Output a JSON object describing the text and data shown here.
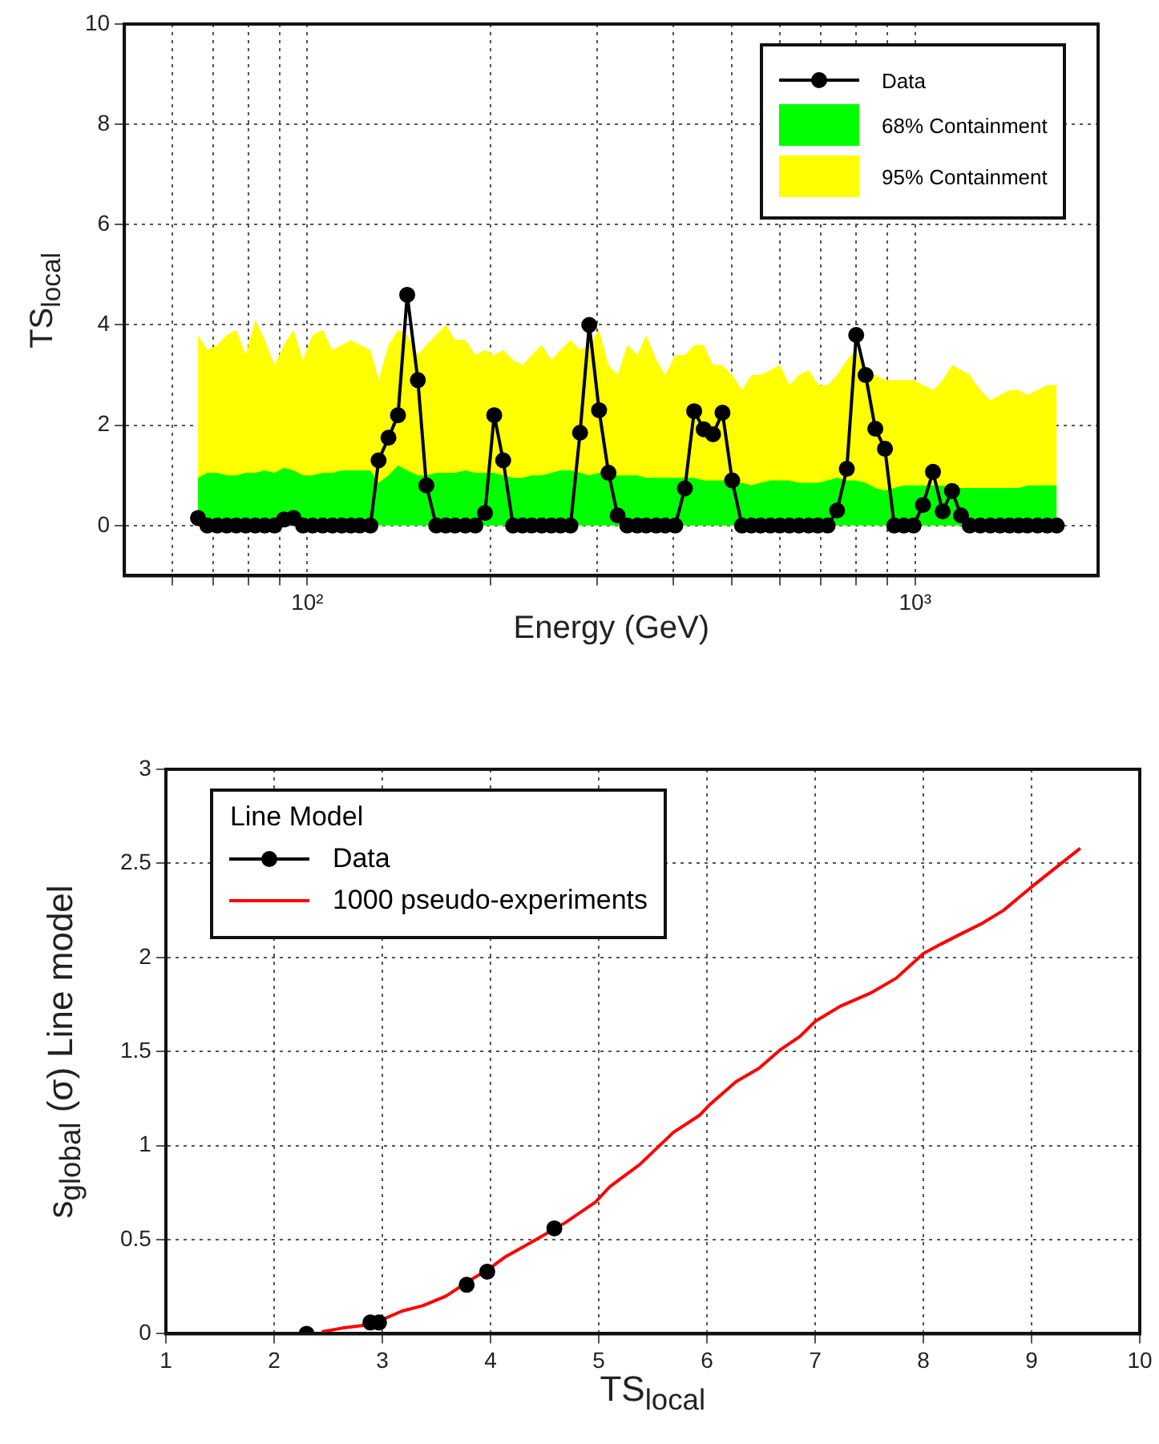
{
  "chart_data": [
    {
      "type": "line",
      "xlabel": "Energy (GeV)",
      "ylabel": "TS$_{local}$",
      "log": "x",
      "grid": true,
      "legend": "top right",
      "xlim": [
        50,
        2000
      ],
      "xticks": [
        {
          "value": 60,
          "label": null
        },
        {
          "value": 70,
          "label": null
        },
        {
          "value": 80,
          "label": null
        },
        {
          "value": 90,
          "label": null
        },
        {
          "value": 100,
          "label": "10²"
        },
        {
          "value": 200,
          "label": null
        },
        {
          "value": 300,
          "label": null
        },
        {
          "value": 400,
          "label": null
        },
        {
          "value": 500,
          "label": null
        },
        {
          "value": 600,
          "label": null
        },
        {
          "value": 700,
          "label": null
        },
        {
          "value": 800,
          "label": null
        },
        {
          "value": 900,
          "label": null
        },
        {
          "value": 1000,
          "label": "10³"
        }
      ],
      "ylim": [
        -1,
        10
      ],
      "yticks": [
        0,
        2,
        4,
        6,
        8,
        10
      ],
      "x": [
        66.1,
        68.5,
        71.1,
        73.7,
        76.4,
        79.2,
        82.1,
        85.1,
        88.3,
        91.5,
        94.9,
        98.4,
        102,
        106,
        110,
        114,
        118,
        122,
        127,
        131,
        136,
        141,
        146,
        152,
        157,
        163,
        169,
        175,
        182,
        189,
        196,
        203,
        210,
        218,
        226,
        234,
        243,
        252,
        261,
        271,
        281,
        291,
        302,
        313,
        324,
        336,
        349,
        361,
        375,
        388,
        403,
        418,
        433,
        449,
        465,
        482,
        500,
        519,
        538,
        557,
        578,
        599,
        621,
        644,
        668,
        692,
        718,
        744,
        772,
        800,
        829,
        860,
        892,
        924,
        958,
        994,
        1030,
        1070,
        1110,
        1150,
        1190,
        1230,
        1280,
        1330,
        1380,
        1430,
        1480,
        1530,
        1590,
        1650,
        1710
      ],
      "series": [
        {
          "name": "Data",
          "type": "line",
          "color": "#000000",
          "marker": "circle",
          "line_style": "solid",
          "values": [
            0.15,
            0,
            0,
            0,
            0,
            0,
            0,
            0,
            0,
            0.12,
            0.15,
            0,
            0,
            0,
            0,
            0,
            0,
            0,
            0,
            1.3,
            1.75,
            2.2,
            4.6,
            2.9,
            0.8,
            0,
            0,
            0,
            0,
            0,
            0.25,
            2.2,
            1.3,
            0,
            0,
            0,
            0,
            0,
            0,
            0,
            1.85,
            4.0,
            2.3,
            1.05,
            0.2,
            0,
            0,
            0,
            0,
            0,
            0,
            0.74,
            2.28,
            1.92,
            1.82,
            2.25,
            0.9,
            0,
            0,
            0,
            0,
            0,
            0,
            0,
            0,
            0,
            0,
            0.3,
            1.13,
            3.8,
            3.0,
            1.93,
            1.53,
            0,
            0,
            0,
            0.41,
            1.07,
            0.28,
            0.69,
            0.2,
            0,
            0,
            0,
            0,
            0,
            0,
            0,
            0,
            0,
            0
          ]
        },
        {
          "name": "68% Containment",
          "type": "area",
          "color": "#00ff00",
          "values": [
            0.95,
            1.05,
            1.05,
            1.0,
            1.0,
            1.05,
            1.05,
            1.1,
            1.05,
            1.15,
            1.1,
            1.0,
            1.0,
            1.05,
            1.05,
            1.1,
            1.1,
            1.1,
            1.1,
            0.85,
            1.0,
            1.2,
            1.1,
            1.0,
            1.0,
            1.05,
            1.05,
            1.05,
            1.1,
            1.05,
            1.05,
            1.05,
            1.0,
            0.95,
            0.95,
            1.0,
            1.0,
            1.05,
            1.1,
            1.1,
            1.05,
            1.0,
            1.05,
            1.0,
            1.0,
            1.0,
            1.0,
            0.95,
            0.95,
            0.95,
            0.95,
            0.95,
            0.95,
            0.9,
            0.9,
            0.9,
            0.85,
            0.85,
            0.8,
            0.85,
            0.9,
            0.9,
            0.9,
            0.85,
            0.85,
            0.85,
            0.9,
            0.95,
            0.9,
            0.9,
            0.85,
            0.75,
            0.7,
            0.75,
            0.8,
            0.8,
            0.8,
            0.8,
            0.8,
            0.75,
            0.75,
            0.75,
            0.75,
            0.75,
            0.75,
            0.75,
            0.75,
            0.8,
            0.8,
            0.8,
            0.8
          ]
        },
        {
          "name": "95% Containment",
          "type": "area",
          "color": "#ffff00",
          "values": [
            3.8,
            3.5,
            3.6,
            3.8,
            3.9,
            3.4,
            4.1,
            3.7,
            3.2,
            3.6,
            3.9,
            3.3,
            3.8,
            3.9,
            3.5,
            3.6,
            3.7,
            3.6,
            3.5,
            2.9,
            3.6,
            3.9,
            3.8,
            3.4,
            3.6,
            3.8,
            4.0,
            3.7,
            3.7,
            3.4,
            3.5,
            3.4,
            3.5,
            3.3,
            3.2,
            3.4,
            3.6,
            3.3,
            3.5,
            3.7,
            3.5,
            3.6,
            3.9,
            3.2,
            3.0,
            3.6,
            3.4,
            3.8,
            3.3,
            3.0,
            3.4,
            3.4,
            3.6,
            3.6,
            3.2,
            3.2,
            3.0,
            2.7,
            3.0,
            3.0,
            3.1,
            3.2,
            2.8,
            3.0,
            3.1,
            2.8,
            2.8,
            3.0,
            3.3,
            3.5,
            3.0,
            3.0,
            2.9,
            2.9,
            2.9,
            2.9,
            2.8,
            2.7,
            2.9,
            3.2,
            3.1,
            3.0,
            2.7,
            2.5,
            2.6,
            2.7,
            2.7,
            2.6,
            2.7,
            2.8,
            2.8
          ]
        }
      ]
    },
    {
      "type": "line",
      "xlabel": "TS$_{local}$",
      "ylabel": "s$_{global}$ (σ) Line model",
      "legend_title": "Line Model",
      "legend": "top left",
      "grid": true,
      "xlim": [
        1,
        10
      ],
      "xticks": [
        1,
        2,
        3,
        4,
        5,
        6,
        7,
        8,
        9,
        10
      ],
      "ylim": [
        0,
        3
      ],
      "yticks": [
        0,
        0.5,
        1,
        1.5,
        2,
        2.5,
        3
      ],
      "series": [
        {
          "name": "Data",
          "type": "scatter",
          "color": "#000000",
          "marker": "circle",
          "x": [
            2.3,
            2.89,
            2.97,
            3.78,
            3.97,
            4.59
          ],
          "values": [
            0,
            0.06,
            0.06,
            0.26,
            0.33,
            0.56
          ]
        },
        {
          "name": "1000 pseudo-experiments",
          "color": "#ff0000",
          "marker": "none",
          "line_style": "solid",
          "x": [
            2.44,
            2.63,
            2.9,
            3.18,
            3.38,
            3.59,
            3.8,
            4.0,
            4.14,
            4.42,
            4.69,
            4.97,
            5.1,
            5.38,
            5.69,
            5.93,
            6.03,
            6.27,
            6.48,
            6.68,
            6.86,
            7.0,
            7.23,
            7.51,
            7.75,
            8.0,
            8.16,
            8.33,
            8.54,
            8.74,
            8.99,
            9.23,
            9.45
          ],
          "values": [
            0.01,
            0.03,
            0.05,
            0.12,
            0.15,
            0.2,
            0.28,
            0.35,
            0.41,
            0.5,
            0.59,
            0.7,
            0.78,
            0.9,
            1.07,
            1.16,
            1.22,
            1.34,
            1.41,
            1.51,
            1.58,
            1.66,
            1.74,
            1.81,
            1.89,
            2.02,
            2.07,
            2.12,
            2.18,
            2.25,
            2.37,
            2.48,
            2.58
          ]
        }
      ]
    }
  ]
}
